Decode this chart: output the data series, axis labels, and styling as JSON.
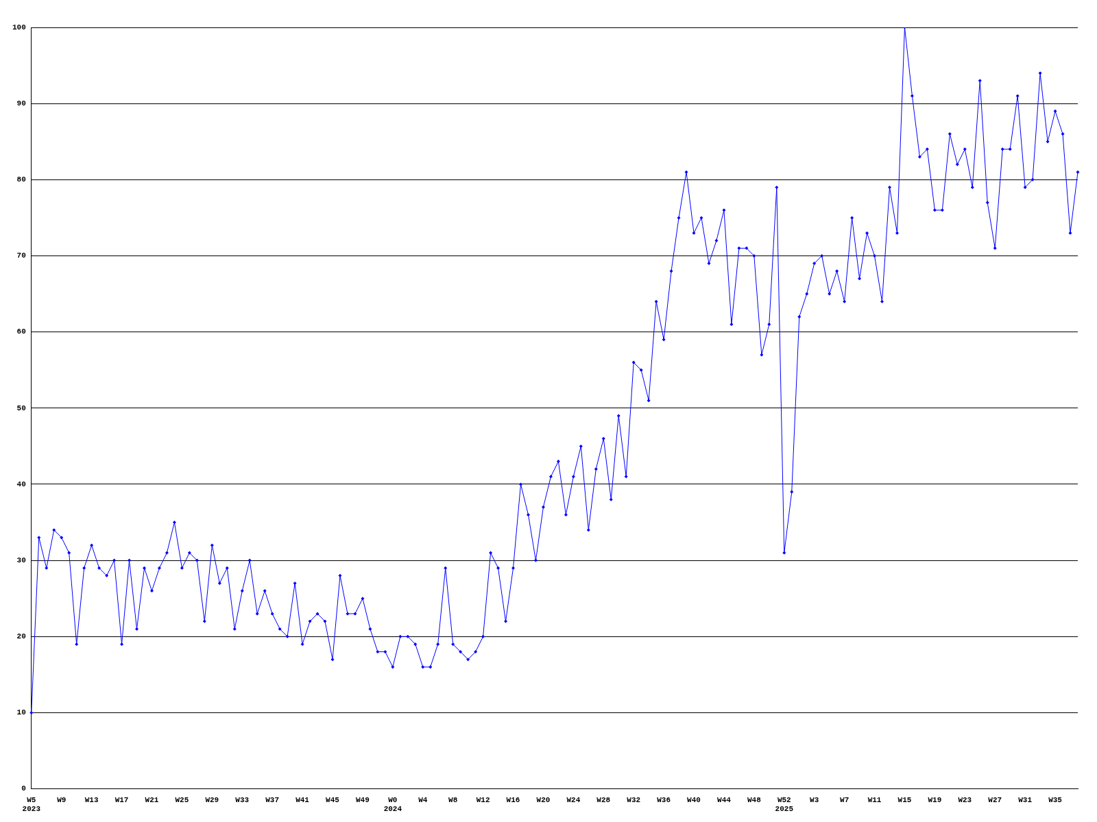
{
  "chart_data": {
    "type": "line",
    "categories": [
      "W5\n2023",
      null,
      null,
      null,
      "W9",
      null,
      null,
      null,
      "W13",
      null,
      null,
      null,
      "W17",
      null,
      null,
      null,
      "W21",
      null,
      null,
      null,
      "W25",
      null,
      null,
      null,
      "W29",
      null,
      null,
      null,
      "W33",
      null,
      null,
      null,
      "W37",
      null,
      null,
      null,
      "W41",
      null,
      null,
      null,
      "W45",
      null,
      null,
      null,
      "W49",
      null,
      null,
      null,
      "W0\n2024",
      null,
      null,
      null,
      "W4",
      null,
      null,
      null,
      "W8",
      null,
      null,
      null,
      "W12",
      null,
      null,
      null,
      "W16",
      null,
      null,
      null,
      "W20",
      null,
      null,
      null,
      "W24",
      null,
      null,
      null,
      "W28",
      null,
      null,
      null,
      "W32",
      null,
      null,
      null,
      "W36",
      null,
      null,
      null,
      "W40",
      null,
      null,
      null,
      "W44",
      null,
      null,
      null,
      "W48",
      null,
      null,
      null,
      "W52\n2025",
      null,
      null,
      null,
      "W3",
      null,
      null,
      null,
      "W7",
      null,
      null,
      null,
      "W11",
      null,
      null,
      null,
      "W15",
      null,
      null,
      null,
      "W19",
      null,
      null,
      null,
      "W23",
      null,
      null,
      null,
      "W27",
      null,
      null,
      null,
      "W31",
      null,
      null,
      null,
      "W35",
      null,
      null,
      null
    ],
    "series": [
      {
        "color": "#0000ff",
        "values": [
          10,
          33,
          29,
          34,
          33,
          31,
          19,
          29,
          32,
          29,
          28,
          30,
          19,
          30,
          21,
          29,
          26,
          29,
          31,
          35,
          29,
          31,
          30,
          22,
          32,
          27,
          29,
          21,
          26,
          30,
          23,
          26,
          23,
          21,
          20,
          27,
          19,
          22,
          23,
          22,
          17,
          28,
          23,
          23,
          25,
          21,
          18,
          18,
          16,
          20,
          20,
          19,
          16,
          16,
          19,
          29,
          19,
          18,
          17,
          18,
          20,
          31,
          29,
          22,
          29,
          40,
          36,
          30,
          37,
          41,
          43,
          36,
          41,
          45,
          34,
          42,
          46,
          38,
          49,
          41,
          56,
          55,
          51,
          64,
          59,
          68,
          75,
          81,
          73,
          75,
          69,
          72,
          76,
          61,
          71,
          71,
          70,
          57,
          61,
          79,
          31,
          39,
          62,
          65,
          69,
          70,
          65,
          68,
          64,
          75,
          67,
          73,
          70,
          64,
          79,
          73,
          100,
          91,
          83,
          84,
          76,
          76,
          86,
          82,
          84,
          79,
          93,
          77,
          71,
          84,
          84,
          91,
          79,
          80,
          94,
          85,
          89,
          86,
          73,
          81
        ]
      }
    ],
    "ylim": [
      0,
      100
    ],
    "yticks": [
      0,
      10,
      20,
      30,
      40,
      50,
      60,
      70,
      80,
      90,
      100
    ],
    "grid": "y",
    "legend": false,
    "marker": "diamond",
    "line_style": "solid"
  }
}
